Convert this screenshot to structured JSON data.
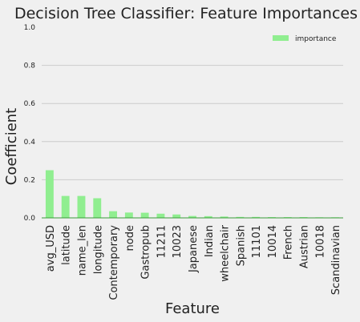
{
  "chart_data": {
    "type": "bar",
    "title": "Decision Tree Classifier: Feature Importances",
    "xlabel": "Feature",
    "ylabel": "Coefficient",
    "ylim": [
      0,
      1.0
    ],
    "yticks": [
      0.0,
      0.2,
      0.4,
      0.6,
      0.8,
      1.0
    ],
    "ytick_labels": [
      "0.0",
      "0.2",
      "0.4",
      "0.6",
      "0.8",
      "1.0"
    ],
    "grid": true,
    "legend": {
      "position": "top-right"
    },
    "categories": [
      "avg_USD",
      "latitude",
      "name_len",
      "longitude",
      "Contemporary",
      "node",
      "Gastropub",
      "11211",
      "10023",
      "Japanese",
      "Indian",
      "wheelchair",
      "Spanish",
      "11101",
      "10014",
      "French",
      "Austrian",
      "10018",
      "Scandinavian"
    ],
    "series": [
      {
        "name": "importance",
        "color": "#90ee90",
        "values": [
          0.25,
          0.115,
          0.115,
          0.103,
          0.035,
          0.028,
          0.027,
          0.022,
          0.018,
          0.01,
          0.009,
          0.007,
          0.005,
          0.005,
          0.004,
          0.004,
          0.004,
          0.003,
          0.003
        ]
      }
    ]
  }
}
